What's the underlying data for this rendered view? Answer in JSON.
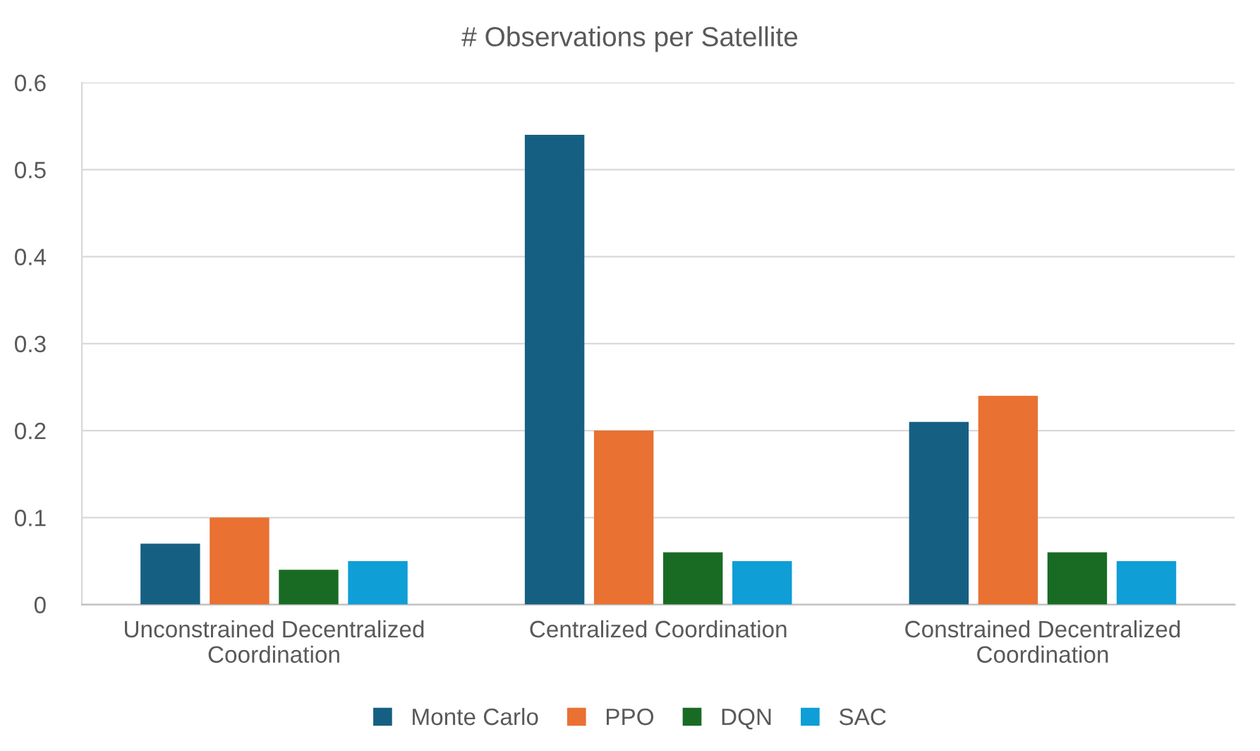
{
  "chart_data": {
    "type": "bar",
    "title": "# Observations per Satellite",
    "categories": [
      "Unconstrained Decentralized\nCoordination",
      "Centralized Coordination",
      "Constrained Decentralized\nCoordination"
    ],
    "series": [
      {
        "name": "Monte Carlo",
        "color": "#156082",
        "values": [
          0.07,
          0.54,
          0.21
        ]
      },
      {
        "name": "PPO",
        "color": "#e97132",
        "values": [
          0.1,
          0.2,
          0.24
        ]
      },
      {
        "name": "DQN",
        "color": "#196b24",
        "values": [
          0.04,
          0.06,
          0.06
        ]
      },
      {
        "name": "SAC",
        "color": "#0f9ed5",
        "values": [
          0.05,
          0.05,
          0.05
        ]
      }
    ],
    "ylim": [
      0,
      0.6
    ],
    "yticks": [
      0,
      0.1,
      0.2,
      0.3,
      0.4,
      0.5,
      0.6
    ],
    "grid": "y",
    "legend": "bottom"
  }
}
